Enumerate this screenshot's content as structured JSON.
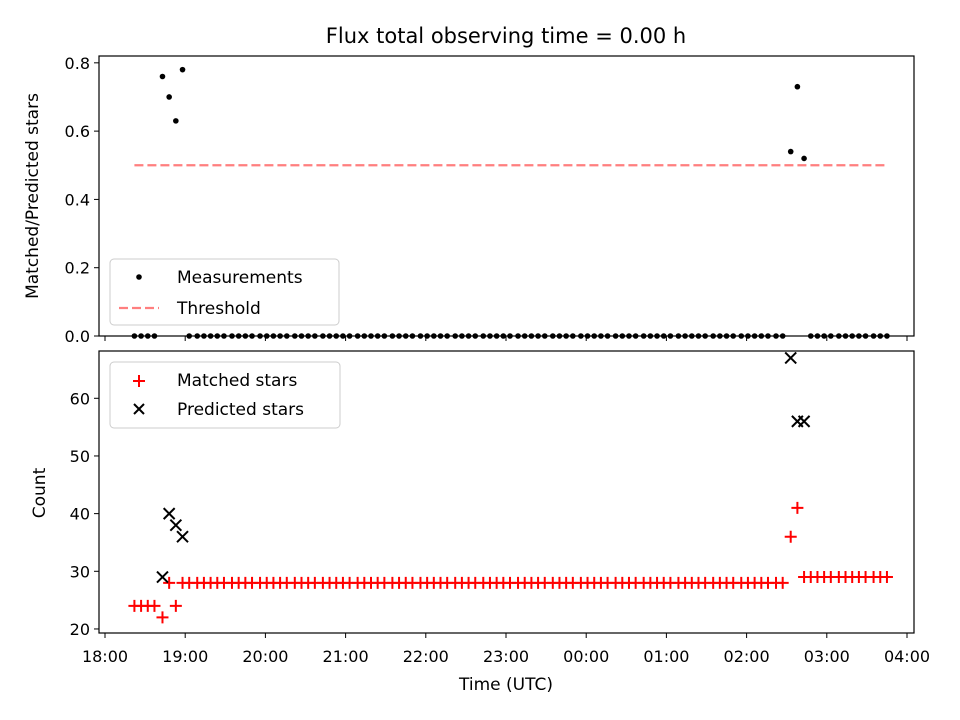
{
  "figure": {
    "title": "Flux total observing time = 0.00 h"
  },
  "chart_data": [
    {
      "type": "scatter",
      "ylabel": "Matched/Predicted stars",
      "xlabel": "",
      "ylim": [
        0,
        0.82
      ],
      "xlim": [
        "18:00",
        "04:00"
      ],
      "yticks": [
        "0.0",
        "0.2",
        "0.4",
        "0.6",
        "0.8"
      ],
      "grid": false,
      "legend_position": "lower-left",
      "series": [
        {
          "name": "Measurements",
          "marker": "dot",
          "color": "#000000",
          "points": [
            [
              "18:22",
              0
            ],
            [
              "18:27",
              0
            ],
            [
              "18:32",
              0
            ],
            [
              "18:37",
              0
            ],
            [
              "18:43",
              0.76
            ],
            [
              "18:48",
              0.7
            ],
            [
              "18:53",
              0.63
            ],
            [
              "18:58",
              0.78
            ],
            [
              "19:03",
              0
            ],
            [
              "19:09",
              0
            ],
            [
              "19:14",
              0
            ],
            [
              "19:19",
              0
            ],
            [
              "19:24",
              0
            ],
            [
              "19:29",
              0
            ],
            [
              "19:35",
              0
            ],
            [
              "19:40",
              0
            ],
            [
              "19:45",
              0
            ],
            [
              "19:50",
              0
            ],
            [
              "19:56",
              0
            ],
            [
              "20:01",
              0
            ],
            [
              "20:06",
              0
            ],
            [
              "20:11",
              0
            ],
            [
              "20:16",
              0
            ],
            [
              "20:22",
              0
            ],
            [
              "20:27",
              0
            ],
            [
              "20:32",
              0
            ],
            [
              "20:37",
              0
            ],
            [
              "20:43",
              0
            ],
            [
              "20:48",
              0
            ],
            [
              "20:53",
              0
            ],
            [
              "20:58",
              0
            ],
            [
              "21:03",
              0
            ],
            [
              "21:09",
              0
            ],
            [
              "21:14",
              0
            ],
            [
              "21:19",
              0
            ],
            [
              "21:24",
              0
            ],
            [
              "21:29",
              0
            ],
            [
              "21:35",
              0
            ],
            [
              "21:40",
              0
            ],
            [
              "21:45",
              0
            ],
            [
              "21:50",
              0
            ],
            [
              "21:56",
              0
            ],
            [
              "22:01",
              0
            ],
            [
              "22:06",
              0
            ],
            [
              "22:11",
              0
            ],
            [
              "22:16",
              0
            ],
            [
              "22:22",
              0
            ],
            [
              "22:27",
              0
            ],
            [
              "22:32",
              0
            ],
            [
              "22:37",
              0
            ],
            [
              "22:43",
              0
            ],
            [
              "22:48",
              0
            ],
            [
              "22:53",
              0
            ],
            [
              "22:58",
              0
            ],
            [
              "23:03",
              0
            ],
            [
              "23:09",
              0
            ],
            [
              "23:14",
              0
            ],
            [
              "23:19",
              0
            ],
            [
              "23:24",
              0
            ],
            [
              "23:29",
              0
            ],
            [
              "23:35",
              0
            ],
            [
              "23:40",
              0
            ],
            [
              "23:45",
              0
            ],
            [
              "23:50",
              0
            ],
            [
              "23:56",
              0
            ],
            [
              "00:01",
              0
            ],
            [
              "00:06",
              0
            ],
            [
              "00:11",
              0
            ],
            [
              "00:16",
              0
            ],
            [
              "00:22",
              0
            ],
            [
              "00:27",
              0
            ],
            [
              "00:32",
              0
            ],
            [
              "00:37",
              0
            ],
            [
              "00:43",
              0
            ],
            [
              "00:48",
              0
            ],
            [
              "00:53",
              0
            ],
            [
              "00:58",
              0
            ],
            [
              "01:03",
              0
            ],
            [
              "01:09",
              0
            ],
            [
              "01:14",
              0
            ],
            [
              "01:19",
              0
            ],
            [
              "01:24",
              0
            ],
            [
              "01:29",
              0
            ],
            [
              "01:35",
              0
            ],
            [
              "01:40",
              0
            ],
            [
              "01:45",
              0
            ],
            [
              "01:50",
              0
            ],
            [
              "01:56",
              0
            ],
            [
              "02:01",
              0
            ],
            [
              "02:06",
              0
            ],
            [
              "02:11",
              0
            ],
            [
              "02:16",
              0
            ],
            [
              "02:22",
              0
            ],
            [
              "02:27",
              0
            ],
            [
              "02:33",
              0.54
            ],
            [
              "02:38",
              0.73
            ],
            [
              "02:43",
              0.52
            ],
            [
              "02:48",
              0
            ],
            [
              "02:53",
              0
            ],
            [
              "02:58",
              0
            ],
            [
              "03:03",
              0
            ],
            [
              "03:09",
              0
            ],
            [
              "03:14",
              0
            ],
            [
              "03:19",
              0
            ],
            [
              "03:24",
              0
            ],
            [
              "03:29",
              0
            ],
            [
              "03:35",
              0
            ],
            [
              "03:40",
              0
            ],
            [
              "03:45",
              0
            ]
          ]
        },
        {
          "name": "Threshold",
          "marker": "dashed-line",
          "color": "#ff7f7f",
          "points": [
            [
              "18:22",
              0.5
            ],
            [
              "03:45",
              0.5
            ]
          ]
        }
      ]
    },
    {
      "type": "scatter",
      "ylabel": "Count",
      "xlabel": "Time (UTC)",
      "ylim": [
        19.3,
        68.2
      ],
      "xlim": [
        "18:00",
        "04:00"
      ],
      "yticks": [
        "20",
        "30",
        "40",
        "50",
        "60"
      ],
      "xticks": [
        "18:00",
        "19:00",
        "20:00",
        "21:00",
        "22:00",
        "23:00",
        "00:00",
        "01:00",
        "02:00",
        "03:00",
        "04:00"
      ],
      "grid": false,
      "legend_position": "upper-left",
      "series": [
        {
          "name": "Matched stars",
          "marker": "plus",
          "color": "#ff0000",
          "points": [
            [
              "18:22",
              24
            ],
            [
              "18:27",
              24
            ],
            [
              "18:32",
              24
            ],
            [
              "18:37",
              24
            ],
            [
              "18:43",
              22
            ],
            [
              "18:48",
              28
            ],
            [
              "18:53",
              24
            ],
            [
              "18:58",
              28
            ],
            [
              "19:03",
              28
            ],
            [
              "19:09",
              28
            ],
            [
              "19:14",
              28
            ],
            [
              "19:19",
              28
            ],
            [
              "19:24",
              28
            ],
            [
              "19:29",
              28
            ],
            [
              "19:35",
              28
            ],
            [
              "19:40",
              28
            ],
            [
              "19:45",
              28
            ],
            [
              "19:50",
              28
            ],
            [
              "19:56",
              28
            ],
            [
              "20:01",
              28
            ],
            [
              "20:06",
              28
            ],
            [
              "20:11",
              28
            ],
            [
              "20:16",
              28
            ],
            [
              "20:22",
              28
            ],
            [
              "20:27",
              28
            ],
            [
              "20:32",
              28
            ],
            [
              "20:37",
              28
            ],
            [
              "20:43",
              28
            ],
            [
              "20:48",
              28
            ],
            [
              "20:53",
              28
            ],
            [
              "20:58",
              28
            ],
            [
              "21:03",
              28
            ],
            [
              "21:09",
              28
            ],
            [
              "21:14",
              28
            ],
            [
              "21:19",
              28
            ],
            [
              "21:24",
              28
            ],
            [
              "21:29",
              28
            ],
            [
              "21:35",
              28
            ],
            [
              "21:40",
              28
            ],
            [
              "21:45",
              28
            ],
            [
              "21:50",
              28
            ],
            [
              "21:56",
              28
            ],
            [
              "22:01",
              28
            ],
            [
              "22:06",
              28
            ],
            [
              "22:11",
              28
            ],
            [
              "22:16",
              28
            ],
            [
              "22:22",
              28
            ],
            [
              "22:27",
              28
            ],
            [
              "22:32",
              28
            ],
            [
              "22:37",
              28
            ],
            [
              "22:43",
              28
            ],
            [
              "22:48",
              28
            ],
            [
              "22:53",
              28
            ],
            [
              "22:58",
              28
            ],
            [
              "23:03",
              28
            ],
            [
              "23:09",
              28
            ],
            [
              "23:14",
              28
            ],
            [
              "23:19",
              28
            ],
            [
              "23:24",
              28
            ],
            [
              "23:29",
              28
            ],
            [
              "23:35",
              28
            ],
            [
              "23:40",
              28
            ],
            [
              "23:45",
              28
            ],
            [
              "23:50",
              28
            ],
            [
              "23:56",
              28
            ],
            [
              "00:01",
              28
            ],
            [
              "00:06",
              28
            ],
            [
              "00:11",
              28
            ],
            [
              "00:16",
              28
            ],
            [
              "00:22",
              28
            ],
            [
              "00:27",
              28
            ],
            [
              "00:32",
              28
            ],
            [
              "00:37",
              28
            ],
            [
              "00:43",
              28
            ],
            [
              "00:48",
              28
            ],
            [
              "00:53",
              28
            ],
            [
              "00:58",
              28
            ],
            [
              "01:03",
              28
            ],
            [
              "01:09",
              28
            ],
            [
              "01:14",
              28
            ],
            [
              "01:19",
              28
            ],
            [
              "01:24",
              28
            ],
            [
              "01:29",
              28
            ],
            [
              "01:35",
              28
            ],
            [
              "01:40",
              28
            ],
            [
              "01:45",
              28
            ],
            [
              "01:50",
              28
            ],
            [
              "01:56",
              28
            ],
            [
              "02:01",
              28
            ],
            [
              "02:06",
              28
            ],
            [
              "02:11",
              28
            ],
            [
              "02:16",
              28
            ],
            [
              "02:22",
              28
            ],
            [
              "02:27",
              28
            ],
            [
              "02:33",
              36
            ],
            [
              "02:38",
              41
            ],
            [
              "02:43",
              29
            ],
            [
              "02:48",
              29
            ],
            [
              "02:53",
              29
            ],
            [
              "02:58",
              29
            ],
            [
              "03:03",
              29
            ],
            [
              "03:09",
              29
            ],
            [
              "03:14",
              29
            ],
            [
              "03:19",
              29
            ],
            [
              "03:24",
              29
            ],
            [
              "03:29",
              29
            ],
            [
              "03:35",
              29
            ],
            [
              "03:40",
              29
            ],
            [
              "03:45",
              29
            ]
          ]
        },
        {
          "name": "Predicted stars",
          "marker": "x",
          "color": "#000000",
          "points": [
            [
              "18:43",
              29
            ],
            [
              "18:48",
              40
            ],
            [
              "18:53",
              38
            ],
            [
              "18:58",
              36
            ],
            [
              "02:33",
              67
            ],
            [
              "02:38",
              56
            ],
            [
              "02:43",
              56
            ]
          ]
        }
      ]
    }
  ]
}
